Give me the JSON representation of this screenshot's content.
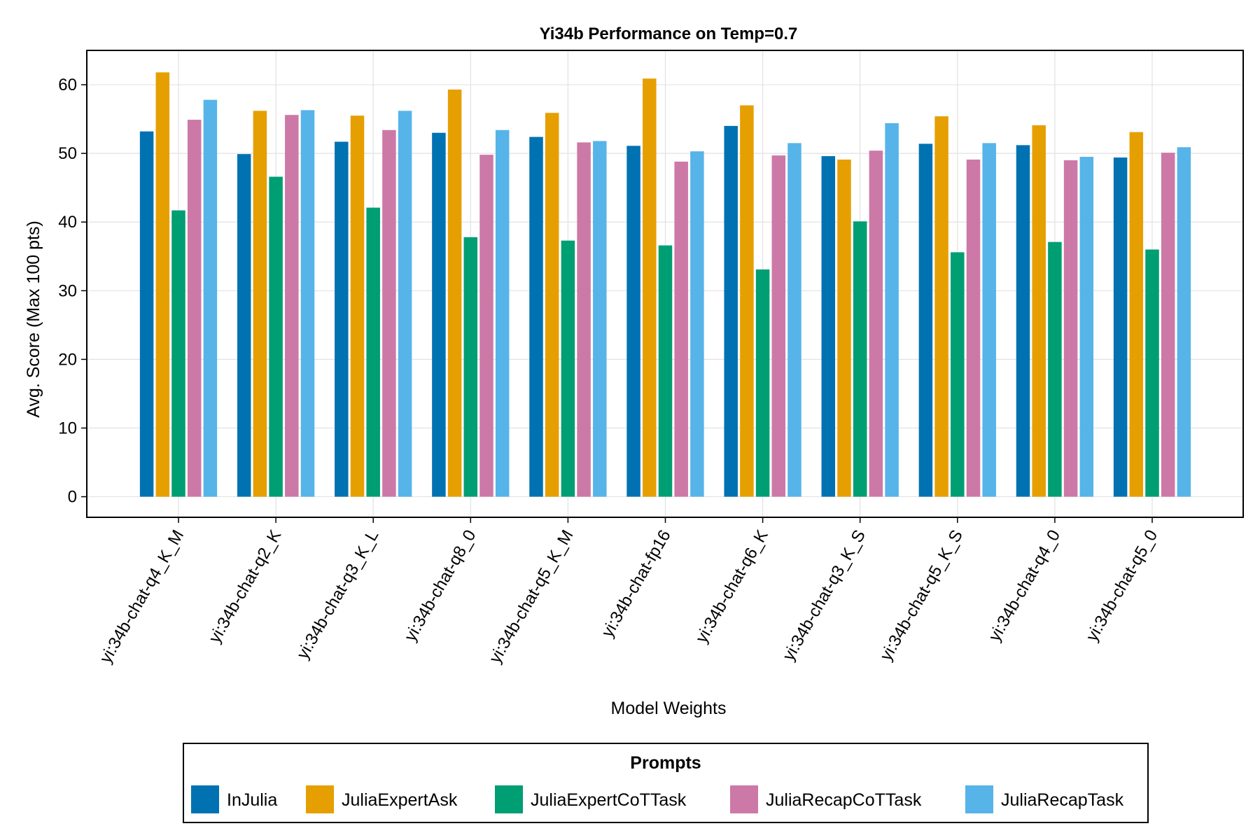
{
  "chart_data": {
    "type": "bar",
    "title": "Yi34b Performance on Temp=0.7",
    "xlabel": "Model Weights",
    "ylabel": "Avg. Score (Max 100 pts)",
    "ylim": [
      -3,
      65
    ],
    "yticks": [
      0,
      10,
      20,
      30,
      40,
      50,
      60
    ],
    "grid": true,
    "legend": {
      "title": "Prompts",
      "placement": "bottom"
    },
    "categories": [
      "yi:34b-chat-q4_K_M",
      "yi:34b-chat-q2_K",
      "yi:34b-chat-q3_K_L",
      "yi:34b-chat-q8_0",
      "yi:34b-chat-q5_K_M",
      "yi:34b-chat-fp16",
      "yi:34b-chat-q6_K",
      "yi:34b-chat-q3_K_S",
      "yi:34b-chat-q5_K_S",
      "yi:34b-chat-q4_0",
      "yi:34b-chat-q5_0"
    ],
    "series": [
      {
        "name": "InJulia",
        "color": "#0072b2",
        "values": [
          53.2,
          49.9,
          51.7,
          53.0,
          52.4,
          51.1,
          54.0,
          49.6,
          51.4,
          51.2,
          49.4
        ]
      },
      {
        "name": "JuliaExpertAsk",
        "color": "#e69f00",
        "values": [
          61.8,
          56.2,
          55.5,
          59.3,
          55.9,
          60.9,
          57.0,
          49.1,
          55.4,
          54.1,
          53.1
        ]
      },
      {
        "name": "JuliaExpertCoTTask",
        "color": "#009e73",
        "values": [
          41.7,
          46.6,
          42.1,
          37.8,
          37.3,
          36.6,
          33.1,
          40.1,
          35.6,
          37.1,
          36.0
        ]
      },
      {
        "name": "JuliaRecapCoTTask",
        "color": "#cc79a7",
        "values": [
          54.9,
          55.6,
          53.4,
          49.8,
          51.6,
          48.8,
          49.7,
          50.4,
          49.1,
          49.0,
          50.1
        ]
      },
      {
        "name": "JuliaRecapTask",
        "color": "#56b4e9",
        "values": [
          57.8,
          56.3,
          56.2,
          53.4,
          51.8,
          50.3,
          51.5,
          54.4,
          51.5,
          49.5,
          50.9
        ]
      }
    ]
  }
}
